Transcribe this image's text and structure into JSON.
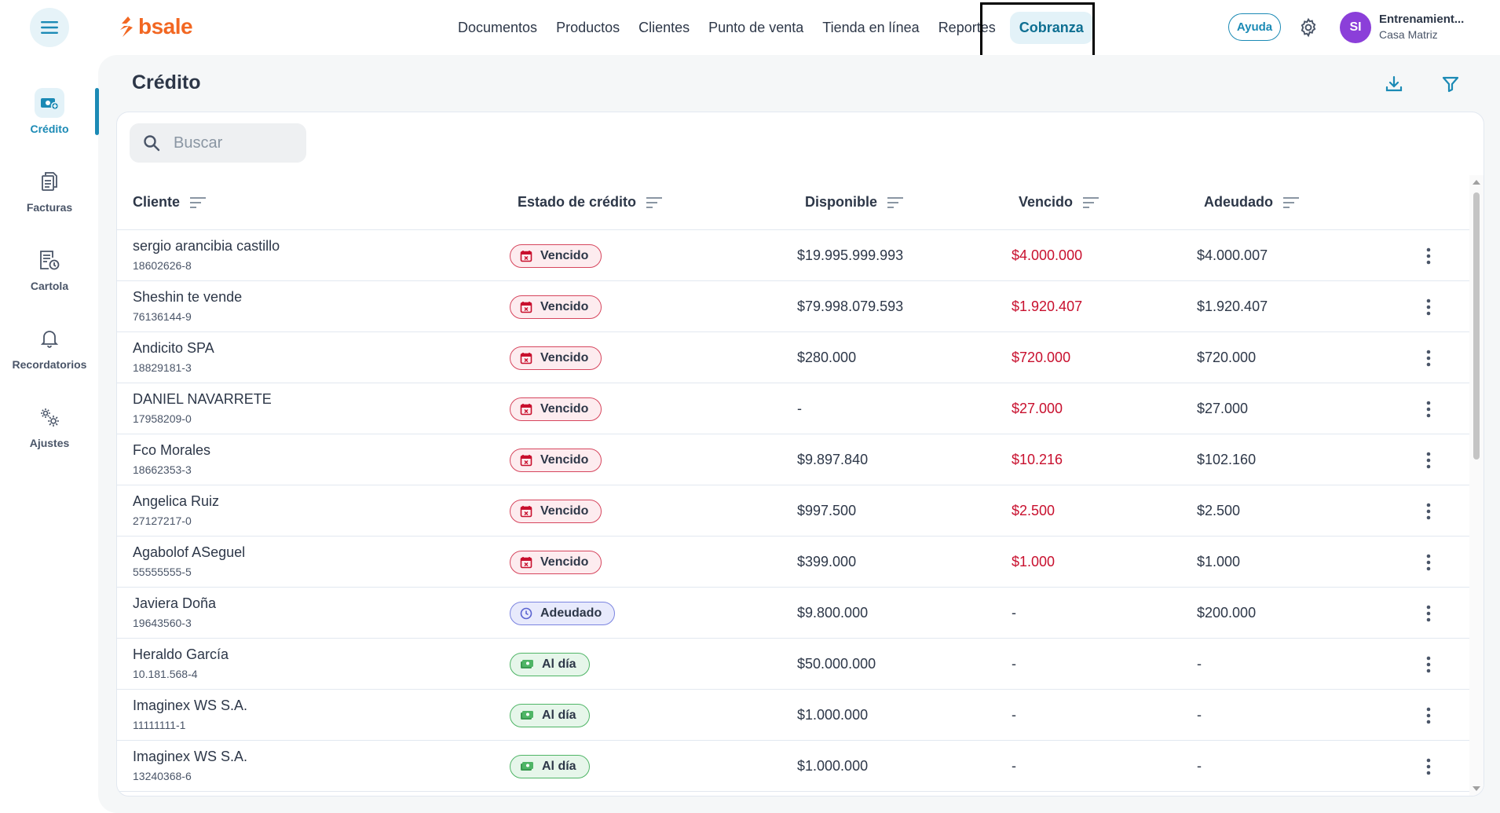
{
  "header": {
    "logo_text": "bsale",
    "nav": [
      {
        "label": "Documentos"
      },
      {
        "label": "Productos"
      },
      {
        "label": "Clientes"
      },
      {
        "label": "Punto de venta"
      },
      {
        "label": "Tienda en línea"
      },
      {
        "label": "Reportes"
      },
      {
        "label": "Cobranza",
        "active": true
      }
    ],
    "help_label": "Ayuda",
    "avatar_initials": "SI",
    "user_name": "Entrenamient...",
    "user_branch": "Casa Matriz"
  },
  "sidebar": {
    "items": [
      {
        "label": "Crédito",
        "icon": "credit-money-icon",
        "active": true
      },
      {
        "label": "Facturas",
        "icon": "invoices-document-icon"
      },
      {
        "label": "Cartola",
        "icon": "statement-clock-icon"
      },
      {
        "label": "Recordatorios",
        "icon": "bell-icon"
      },
      {
        "label": "Ajustes",
        "icon": "gears-icon"
      }
    ]
  },
  "page": {
    "title": "Crédito",
    "search_placeholder": "Buscar"
  },
  "table": {
    "columns": [
      "Cliente",
      "Estado de crédito",
      "Disponible",
      "Vencido",
      "Adeudado"
    ],
    "rows": [
      {
        "name": "sergio arancibia castillo",
        "rut": "18602626-8",
        "status": "Vencido",
        "status_type": "vencido",
        "disponible": "$19.995.999.993",
        "vencido": "$4.000.000",
        "adeudado": "$4.000.007"
      },
      {
        "name": "Sheshin te vende",
        "rut": "76136144-9",
        "status": "Vencido",
        "status_type": "vencido",
        "disponible": "$79.998.079.593",
        "vencido": "$1.920.407",
        "adeudado": "$1.920.407"
      },
      {
        "name": "Andicito SPA",
        "rut": "18829181-3",
        "status": "Vencido",
        "status_type": "vencido",
        "disponible": "$280.000",
        "vencido": "$720.000",
        "adeudado": "$720.000"
      },
      {
        "name": "DANIEL NAVARRETE",
        "rut": "17958209-0",
        "status": "Vencido",
        "status_type": "vencido",
        "disponible": "-",
        "vencido": "$27.000",
        "adeudado": "$27.000"
      },
      {
        "name": "Fco Morales",
        "rut": "18662353-3",
        "status": "Vencido",
        "status_type": "vencido",
        "disponible": "$9.897.840",
        "vencido": "$10.216",
        "adeudado": "$102.160"
      },
      {
        "name": "Angelica Ruiz",
        "rut": "27127217-0",
        "status": "Vencido",
        "status_type": "vencido",
        "disponible": "$997.500",
        "vencido": "$2.500",
        "adeudado": "$2.500"
      },
      {
        "name": "Agabolof ASeguel",
        "rut": "55555555-5",
        "status": "Vencido",
        "status_type": "vencido",
        "disponible": "$399.000",
        "vencido": "$1.000",
        "adeudado": "$1.000"
      },
      {
        "name": "Javiera Doña",
        "rut": "19643560-3",
        "status": "Adeudado",
        "status_type": "adeudado",
        "disponible": "$9.800.000",
        "vencido": "-",
        "adeudado": "$200.000"
      },
      {
        "name": "Heraldo García",
        "rut": "10.181.568-4",
        "status": "Al día",
        "status_type": "aldia",
        "disponible": "$50.000.000",
        "vencido": "-",
        "adeudado": "-"
      },
      {
        "name": "Imaginex WS S.A.",
        "rut": "11111111-1",
        "status": "Al día",
        "status_type": "aldia",
        "disponible": "$1.000.000",
        "vencido": "-",
        "adeudado": "-"
      },
      {
        "name": "Imaginex WS S.A.",
        "rut": "13240368-6",
        "status": "Al día",
        "status_type": "aldia",
        "disponible": "$1.000.000",
        "vencido": "-",
        "adeudado": "-"
      }
    ]
  },
  "colors": {
    "accent": "#1b8ab5",
    "brand": "#f26722",
    "overdue_red": "#c8102e",
    "avatar": "#8b3fd9"
  }
}
